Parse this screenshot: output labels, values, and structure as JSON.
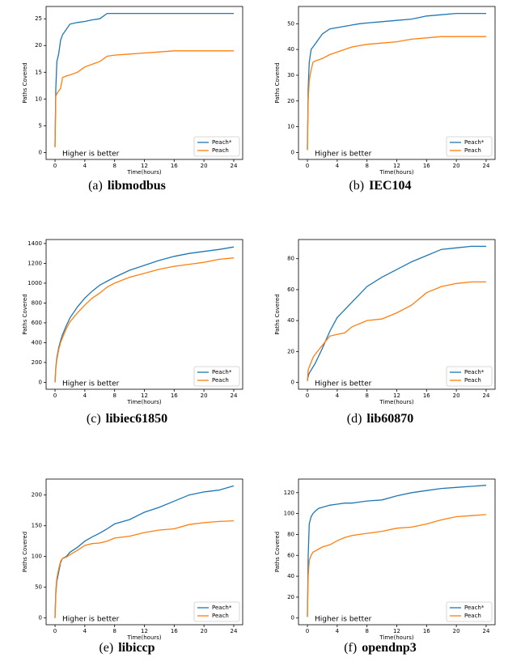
{
  "chart_data": [
    {
      "type": "line",
      "caption_label": "(a)",
      "caption": "libmodbus",
      "xlabel": "Time(hours)",
      "ylabel": "Paths Covered",
      "annotation": "Higher is better",
      "legend": "lower right",
      "x": [
        0,
        0.1,
        0.25,
        0.5,
        0.75,
        1,
        1.5,
        2,
        3,
        4,
        5,
        6,
        7,
        8,
        10,
        12,
        14,
        16,
        18,
        20,
        22,
        24
      ],
      "series": [
        {
          "name": "Peach*",
          "color": "#1f77b4",
          "values": [
            1,
            12,
            17,
            18.5,
            21,
            22,
            23,
            24,
            24.3,
            24.5,
            24.8,
            25,
            26,
            26,
            26,
            26,
            26,
            26,
            26,
            26,
            26,
            26
          ]
        },
        {
          "name": "Peach",
          "color": "#ff7f0e",
          "values": [
            1,
            10.5,
            11,
            11.5,
            12,
            14,
            14.3,
            14.5,
            15,
            16,
            16.5,
            17,
            18,
            18.2,
            18.4,
            18.6,
            18.8,
            19,
            19,
            19,
            19,
            19
          ]
        }
      ],
      "xlim": [
        -1.2,
        25.2
      ],
      "xticks": [
        0,
        4,
        8,
        12,
        16,
        20,
        24
      ],
      "ylim": [
        -1.3,
        27.3
      ],
      "yticks": [
        0,
        5,
        10,
        15,
        20,
        25
      ]
    },
    {
      "type": "line",
      "caption_label": "(b)",
      "caption": "IEC104",
      "xlabel": "Time(hours)",
      "ylabel": "Paths Covered",
      "annotation": "Higher is better",
      "legend": "lower right",
      "x": [
        0,
        0.1,
        0.25,
        0.5,
        0.75,
        1,
        1.5,
        2,
        3,
        4,
        5,
        6,
        7,
        8,
        10,
        12,
        14,
        16,
        18,
        20,
        22,
        24
      ],
      "series": [
        {
          "name": "Peach*",
          "color": "#1f77b4",
          "values": [
            1,
            25,
            35,
            40,
            41,
            42,
            44,
            46,
            48,
            48.5,
            49,
            49.5,
            50,
            50.3,
            50.8,
            51.3,
            51.8,
            53,
            53.5,
            54,
            54,
            54
          ]
        },
        {
          "name": "Peach",
          "color": "#ff7f0e",
          "values": [
            1,
            20,
            28,
            32,
            35,
            35.5,
            36,
            36.5,
            38,
            39,
            40,
            41,
            41.5,
            42,
            42.5,
            43,
            44,
            44.5,
            45,
            45,
            45,
            45
          ]
        }
      ],
      "xlim": [
        -1.2,
        25.2
      ],
      "xticks": [
        0,
        4,
        8,
        12,
        16,
        20,
        24
      ],
      "ylim": [
        -2.7,
        56.7
      ],
      "yticks": [
        0,
        10,
        20,
        30,
        40,
        50
      ]
    },
    {
      "type": "line",
      "caption_label": "(c)",
      "caption": "libiec61850",
      "xlabel": "Time(hours)",
      "ylabel": "Paths Covered",
      "annotation": "Higher is better",
      "legend": "lower right",
      "x": [
        0,
        0.1,
        0.25,
        0.5,
        0.75,
        1,
        1.5,
        2,
        3,
        4,
        5,
        6,
        7,
        8,
        10,
        12,
        14,
        16,
        18,
        20,
        22,
        24
      ],
      "series": [
        {
          "name": "Peach*",
          "color": "#1f77b4",
          "values": [
            0,
            150,
            250,
            350,
            420,
            480,
            570,
            650,
            760,
            850,
            920,
            980,
            1020,
            1060,
            1130,
            1180,
            1230,
            1270,
            1300,
            1320,
            1340,
            1365
          ]
        },
        {
          "name": "Peach",
          "color": "#ff7f0e",
          "values": [
            0,
            140,
            230,
            330,
            400,
            450,
            540,
            610,
            700,
            780,
            850,
            900,
            960,
            1000,
            1060,
            1100,
            1140,
            1170,
            1190,
            1210,
            1240,
            1255
          ]
        }
      ],
      "xlim": [
        -1.2,
        25.2
      ],
      "xticks": [
        0,
        4,
        8,
        12,
        16,
        20,
        24
      ],
      "ylim": [
        -70,
        1440
      ],
      "yticks": [
        0,
        200,
        400,
        600,
        800,
        1000,
        1200,
        1400
      ]
    },
    {
      "type": "line",
      "caption_label": "(d)",
      "caption": "lib60870",
      "xlabel": "Time(hours)",
      "ylabel": "Paths Covered",
      "annotation": "Higher is better",
      "legend": "lower right",
      "x": [
        0,
        0.1,
        0.25,
        0.5,
        0.75,
        1,
        1.5,
        2,
        3,
        4,
        5,
        6,
        7,
        8,
        10,
        12,
        14,
        16,
        18,
        20,
        22,
        24
      ],
      "series": [
        {
          "name": "Peach*",
          "color": "#1f77b4",
          "values": [
            1,
            4,
            6,
            8,
            10,
            12,
            17,
            22,
            33,
            42,
            47,
            52,
            57,
            62,
            68,
            73,
            78,
            82,
            86,
            87,
            88,
            88
          ]
        },
        {
          "name": "Peach",
          "color": "#ff7f0e",
          "values": [
            1,
            8,
            10,
            13,
            16,
            18,
            21,
            24,
            30,
            31,
            32,
            36,
            38,
            40,
            41,
            45,
            50,
            58,
            62,
            64,
            65,
            65
          ]
        }
      ],
      "xlim": [
        -1.2,
        25.2
      ],
      "xticks": [
        0,
        4,
        8,
        12,
        16,
        20,
        24
      ],
      "ylim": [
        -4.4,
        92.4
      ],
      "yticks": [
        0,
        20,
        40,
        60,
        80
      ]
    },
    {
      "type": "line",
      "caption_label": "(e)",
      "caption": "libiccp",
      "xlabel": "Time(hours)",
      "ylabel": "Paths Covered",
      "annotation": "Higher is better",
      "legend": "lower right",
      "x": [
        0,
        0.1,
        0.25,
        0.5,
        0.75,
        1,
        1.5,
        2,
        3,
        4,
        5,
        6,
        7,
        8,
        10,
        12,
        14,
        16,
        18,
        20,
        22,
        24
      ],
      "series": [
        {
          "name": "Peach*",
          "color": "#1f77b4",
          "values": [
            0,
            40,
            60,
            75,
            90,
            97,
            100,
            107,
            115,
            125,
            132,
            138,
            145,
            153,
            160,
            172,
            180,
            190,
            200,
            205,
            208,
            215
          ]
        },
        {
          "name": "Peach",
          "color": "#ff7f0e",
          "values": [
            0,
            45,
            65,
            80,
            92,
            97,
            99,
            103,
            110,
            118,
            121,
            122,
            125,
            130,
            133,
            139,
            143,
            145,
            152,
            155,
            157,
            158
          ]
        }
      ],
      "xlim": [
        -1.2,
        25.2
      ],
      "xticks": [
        0,
        4,
        8,
        12,
        16,
        20,
        24
      ],
      "ylim": [
        -11,
        226
      ],
      "yticks": [
        0,
        50,
        100,
        150,
        200
      ]
    },
    {
      "type": "line",
      "caption_label": "(f)",
      "caption": "opendnp3",
      "xlabel": "Time(hours)",
      "ylabel": "Paths Covered",
      "annotation": "Higher is better",
      "legend": "lower right",
      "x": [
        0,
        0.1,
        0.25,
        0.5,
        0.75,
        1,
        1.5,
        2,
        3,
        4,
        5,
        6,
        7,
        8,
        10,
        12,
        14,
        16,
        18,
        20,
        22,
        24
      ],
      "series": [
        {
          "name": "Peach*",
          "color": "#1f77b4",
          "values": [
            1,
            60,
            90,
            97,
            100,
            102,
            105,
            106,
            108,
            109,
            110,
            110,
            111,
            112,
            113,
            117,
            120,
            122,
            124,
            125,
            126,
            127
          ]
        },
        {
          "name": "Peach",
          "color": "#ff7f0e",
          "values": [
            1,
            40,
            55,
            60,
            63,
            64,
            66,
            68,
            70,
            74,
            77,
            79,
            80,
            81,
            83,
            86,
            87,
            90,
            94,
            97,
            98,
            99
          ]
        }
      ],
      "xlim": [
        -1.2,
        25.2
      ],
      "xticks": [
        0,
        4,
        8,
        12,
        16,
        20,
        24
      ],
      "ylim": [
        -6.4,
        133
      ],
      "yticks": [
        0,
        20,
        40,
        60,
        80,
        100,
        120
      ]
    }
  ]
}
